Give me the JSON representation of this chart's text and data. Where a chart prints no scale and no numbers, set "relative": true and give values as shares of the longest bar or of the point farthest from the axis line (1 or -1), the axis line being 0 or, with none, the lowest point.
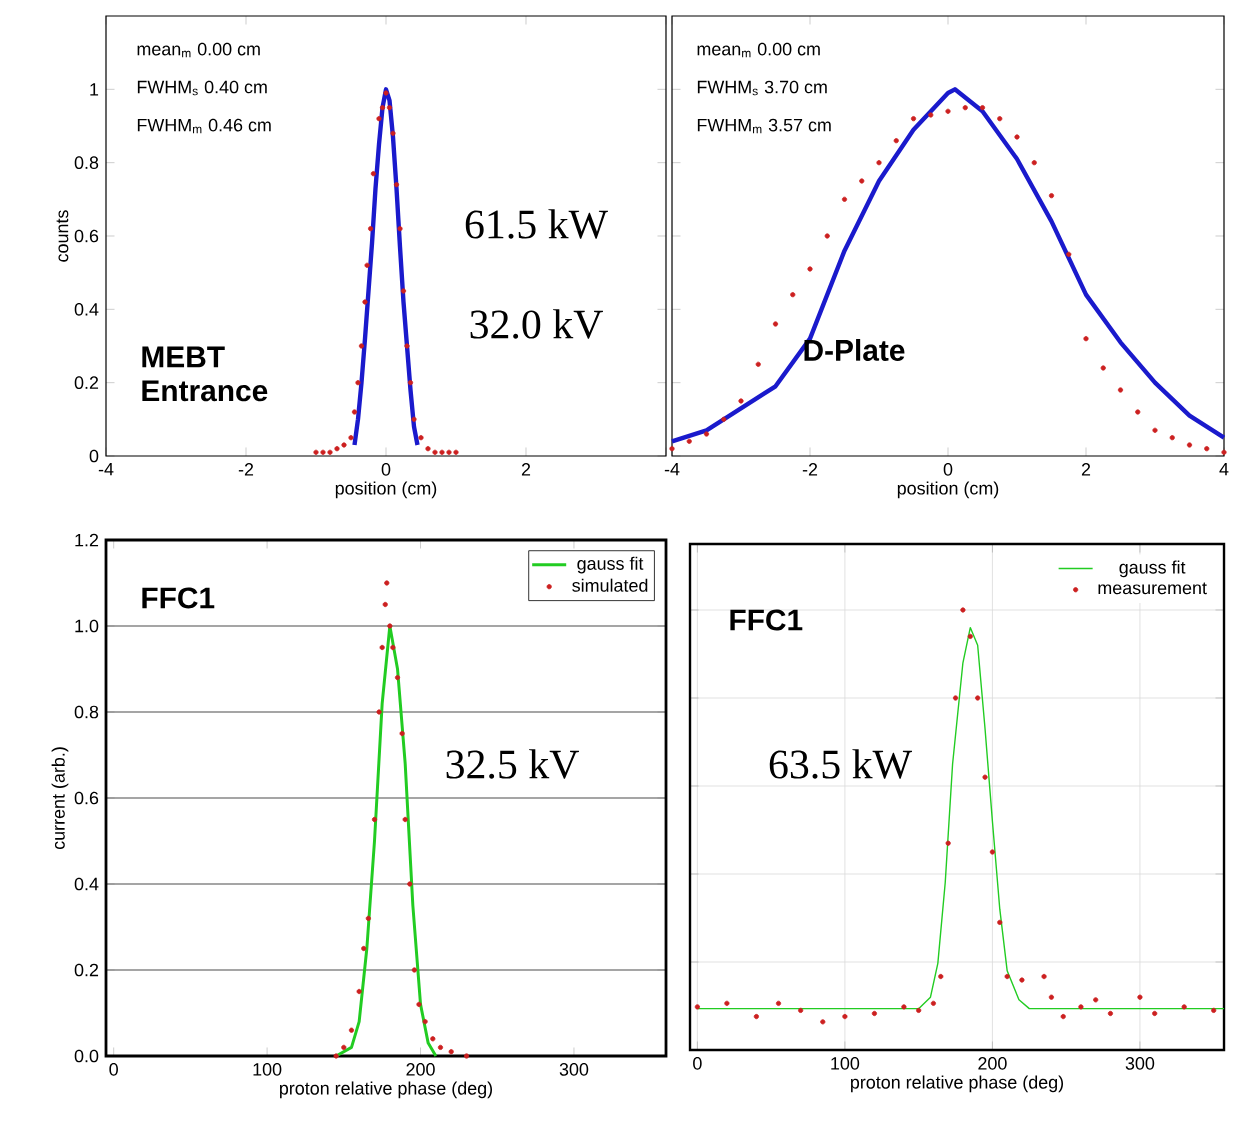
{
  "chart_data": [
    {
      "type": "line",
      "xlabel": "position (cm)",
      "ylabel": "counts",
      "xlim": [
        -4,
        4
      ],
      "ylim": [
        0,
        1.2
      ],
      "xticks": [
        -4,
        -2,
        0,
        2,
        {
          "value": 4,
          "label": null
        }
      ],
      "yticks": [
        0,
        0.2,
        0.4,
        0.6,
        0.8,
        1
      ],
      "annotations": [
        "mean$_{m}$ 0.00 cm",
        "FWHM$_{s}$ 0.40 cm",
        "FWHM$_{m}$ 0.46 cm",
        "61.5 kW",
        "32.0 kV",
        "MEBT Entrance"
      ],
      "series": [
        {
          "type": "scatter",
          "marker": "circle",
          "color": "#cc2020",
          "x": [
            -1,
            -0.9,
            -0.8,
            -0.7,
            -0.6,
            -0.5,
            -0.45,
            -0.4,
            -0.35,
            -0.3,
            -0.27,
            -0.22,
            -0.18,
            -0.1,
            -0.05,
            0,
            0.05,
            0.1,
            0.15,
            0.2,
            0.25,
            0.3,
            0.35,
            0.4,
            0.5,
            0.6,
            0.7,
            0.8,
            0.9,
            1
          ],
          "values": [
            0.01,
            0.01,
            0.01,
            0.02,
            0.03,
            0.05,
            0.12,
            0.2,
            0.3,
            0.42,
            0.52,
            0.62,
            0.77,
            0.92,
            0.95,
            0.99,
            0.95,
            0.88,
            0.74,
            0.62,
            0.45,
            0.3,
            0.2,
            0.1,
            0.05,
            0.02,
            0.01,
            0.01,
            0.01,
            0.01
          ]
        },
        {
          "type": "line",
          "color": "#1a1acc",
          "x": [
            -0.45,
            -0.4,
            -0.35,
            -0.3,
            -0.25,
            -0.2,
            -0.15,
            -0.1,
            -0.05,
            0,
            0.05,
            0.1,
            0.15,
            0.2,
            0.25,
            0.3,
            0.35,
            0.4,
            0.45
          ],
          "values": [
            0.03,
            0.1,
            0.2,
            0.32,
            0.45,
            0.58,
            0.73,
            0.85,
            0.95,
            1.0,
            0.97,
            0.87,
            0.73,
            0.57,
            0.42,
            0.3,
            0.18,
            0.08,
            0.03
          ]
        }
      ]
    },
    {
      "type": "line",
      "xlabel": "position (cm)",
      "xlim": [
        -4,
        4
      ],
      "ylim": [
        0,
        1.2
      ],
      "tick_labels": "x",
      "xticks": [
        -4,
        -2,
        0,
        2,
        4
      ],
      "yticks": [
        0,
        0.2,
        0.4,
        0.6,
        0.8,
        1
      ],
      "annotations": [
        "mean$_{m}$ 0.00 cm",
        "FWHM$_{s}$ 3.70 cm",
        "FWHM$_{m}$ 3.57 cm",
        "D-Plate"
      ],
      "series": [
        {
          "type": "scatter",
          "marker": "circle",
          "color": "#cc2020",
          "x": [
            -4,
            -3.75,
            -3.5,
            -3.25,
            -3,
            -2.75,
            -2.5,
            -2.25,
            -2,
            -1.75,
            -1.5,
            -1.25,
            -1,
            -0.75,
            -0.5,
            -0.25,
            0,
            0.25,
            0.5,
            0.75,
            1,
            1.25,
            1.5,
            1.75,
            2,
            2.25,
            2.5,
            2.75,
            3,
            3.25,
            3.5,
            3.75,
            4
          ],
          "values": [
            0.02,
            0.04,
            0.06,
            0.1,
            0.15,
            0.25,
            0.36,
            0.44,
            0.51,
            0.6,
            0.7,
            0.75,
            0.8,
            0.86,
            0.92,
            0.93,
            0.94,
            0.95,
            0.95,
            0.92,
            0.87,
            0.8,
            0.71,
            0.55,
            0.32,
            0.24,
            0.18,
            0.12,
            0.07,
            0.05,
            0.03,
            0.02,
            0.01
          ]
        },
        {
          "type": "line",
          "color": "#1a1acc",
          "x": [
            -4,
            -3.5,
            -3,
            -2.5,
            -2,
            -1.5,
            -1,
            -0.5,
            0,
            0.1,
            0.5,
            1,
            1.5,
            2,
            2.5,
            3,
            3.5,
            4
          ],
          "values": [
            0.04,
            0.07,
            0.13,
            0.19,
            0.32,
            0.56,
            0.75,
            0.89,
            0.99,
            1.0,
            0.94,
            0.81,
            0.64,
            0.44,
            0.31,
            0.2,
            0.11,
            0.05
          ]
        }
      ]
    },
    {
      "type": "line",
      "xlabel": "proton relative phase (deg)",
      "ylabel": "current (arb.)",
      "xlim": [
        -5,
        360
      ],
      "ylim": [
        0,
        1.2
      ],
      "xticks": [
        0,
        100,
        200,
        300
      ],
      "yticks": [
        {
          "value": 0,
          "label": "0.0"
        },
        0.2,
        0.4,
        0.6,
        0.8,
        {
          "value": 1,
          "label": "1.0"
        },
        1.2
      ],
      "grid": "y",
      "legend": "top right",
      "annotations": [
        "FFC1",
        "32.5 kV"
      ],
      "series": [
        {
          "name": "gauss fit",
          "type": "line",
          "color": "#22cc22",
          "x": [
            145,
            155,
            160,
            165,
            170,
            175,
            180,
            185,
            190,
            195,
            200,
            205,
            210
          ],
          "values": [
            0,
            0.02,
            0.08,
            0.25,
            0.5,
            0.82,
            1.0,
            0.9,
            0.68,
            0.35,
            0.12,
            0.03,
            0
          ]
        },
        {
          "name": "simulated",
          "type": "scatter",
          "marker": "circle",
          "color": "#cc2020",
          "x": [
            145,
            150,
            155,
            160,
            163,
            166,
            170,
            173,
            175,
            177,
            178,
            180,
            182,
            185,
            188,
            190,
            193,
            196,
            199,
            203,
            208,
            213,
            220,
            230
          ],
          "values": [
            0,
            0.02,
            0.06,
            0.15,
            0.25,
            0.32,
            0.55,
            0.8,
            0.95,
            1.05,
            1.1,
            1.0,
            0.95,
            0.88,
            0.75,
            0.55,
            0.4,
            0.2,
            0.12,
            0.08,
            0.04,
            0.02,
            0.01,
            0
          ]
        }
      ]
    },
    {
      "type": "line",
      "xlabel": "proton relative phase (deg)",
      "xlim": [
        -5,
        357
      ],
      "relative": true,
      "tick_labels": "x",
      "xticks": [
        0,
        100,
        200,
        300
      ],
      "grid": true,
      "legend": "top right",
      "annotations": [
        "FFC1",
        "63.5 kW"
      ],
      "series": [
        {
          "name": "gauss fit",
          "type": "line",
          "color": "#22cc22",
          "x": [
            0,
            150,
            158,
            163,
            168,
            173,
            180,
            185,
            190,
            195,
            200,
            205,
            210,
            218,
            225,
            357
          ],
          "values": [
            0.094,
            0.094,
            0.12,
            0.197,
            0.38,
            0.65,
            0.88,
            0.96,
            0.92,
            0.73,
            0.52,
            0.32,
            0.18,
            0.114,
            0.094,
            0.094
          ]
        },
        {
          "name": "measurement",
          "type": "scatter",
          "marker": "circle",
          "color": "#cc2020",
          "x": [
            0,
            20,
            40,
            55,
            70,
            85,
            100,
            120,
            140,
            150,
            160,
            165,
            170,
            175,
            180,
            185,
            190,
            195,
            200,
            205,
            210,
            220,
            235,
            240,
            248,
            260,
            270,
            280,
            300,
            310,
            330,
            350
          ],
          "values": [
            0.098,
            0.106,
            0.076,
            0.106,
            0.09,
            0.064,
            0.076,
            0.083,
            0.098,
            0.09,
            0.106,
            0.167,
            0.47,
            0.8,
            1.0,
            0.94,
            0.8,
            0.62,
            0.45,
            0.29,
            0.167,
            0.159,
            0.167,
            0.12,
            0.076,
            0.098,
            0.114,
            0.083,
            0.12,
            0.083,
            0.098,
            0.09
          ]
        }
      ]
    }
  ]
}
